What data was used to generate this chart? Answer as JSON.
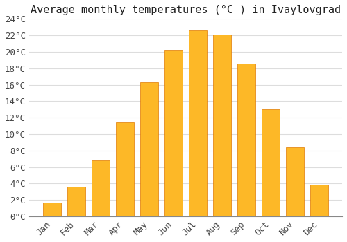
{
  "title": "Average monthly temperatures (°C ) in Ivaylovgrad",
  "months": [
    "Jan",
    "Feb",
    "Mar",
    "Apr",
    "May",
    "Jun",
    "Jul",
    "Aug",
    "Sep",
    "Oct",
    "Nov",
    "Dec"
  ],
  "values": [
    1.7,
    3.6,
    6.8,
    11.4,
    16.3,
    20.2,
    22.6,
    22.1,
    18.6,
    13.0,
    8.4,
    3.9
  ],
  "bar_color_top": "#FDB827",
  "bar_color_bottom": "#F5920A",
  "bar_edge_color": "#E07800",
  "background_color": "#FFFFFF",
  "grid_color": "#DDDDDD",
  "ylim": [
    0,
    24
  ],
  "yticks": [
    0,
    2,
    4,
    6,
    8,
    10,
    12,
    14,
    16,
    18,
    20,
    22,
    24
  ],
  "title_fontsize": 11,
  "tick_fontsize": 9,
  "bar_width": 0.72
}
